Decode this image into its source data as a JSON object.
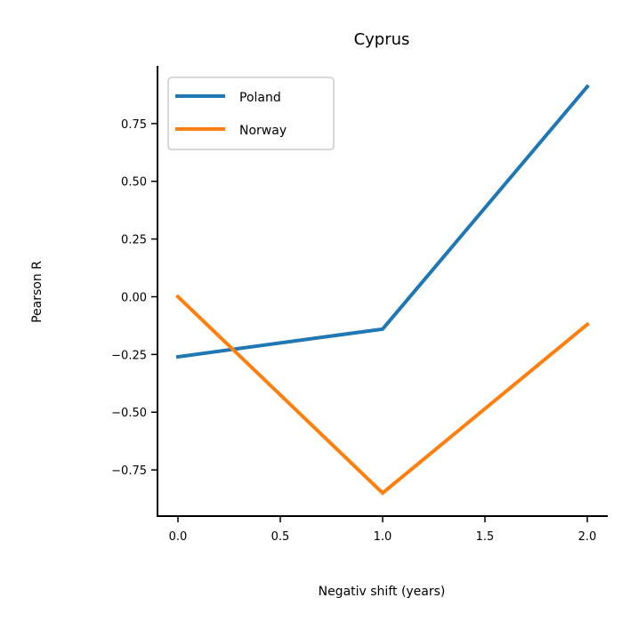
{
  "chart_data": {
    "type": "line",
    "title": "Cyprus",
    "xlabel": "Negativ shift (years)",
    "ylabel": "Pearson R",
    "x": [
      0,
      1,
      2
    ],
    "xlim": [
      -0.1,
      2.1
    ],
    "ylim": [
      -0.95,
      1.0
    ],
    "xticks": [
      0.0,
      0.5,
      1.0,
      1.5,
      2.0
    ],
    "xtick_labels": [
      "0.0",
      "0.5",
      "1.0",
      "1.5",
      "2.0"
    ],
    "yticks": [
      -0.75,
      -0.5,
      -0.25,
      0.0,
      0.25,
      0.5,
      0.75
    ],
    "ytick_labels": [
      "−0.75",
      "−0.50",
      "−0.25",
      "0.00",
      "0.25",
      "0.50",
      "0.75"
    ],
    "grid": false,
    "legend_position": "top-left",
    "series": [
      {
        "name": "Poland",
        "color": "#1f77b4",
        "values": [
          -0.26,
          -0.14,
          0.91
        ]
      },
      {
        "name": "Norway",
        "color": "#ff7f0e",
        "values": [
          0.0,
          -0.85,
          -0.12
        ]
      }
    ]
  }
}
